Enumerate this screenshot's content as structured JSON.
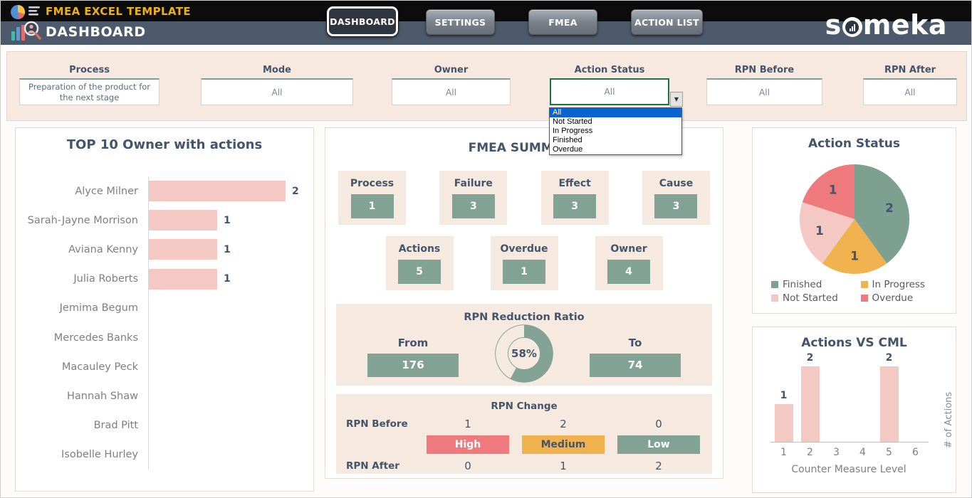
{
  "colors": {
    "sage": "#82a294",
    "beige": "#f6e9df",
    "pink_bar": "#f4c8c3",
    "dark": "#44546a",
    "gold": "#eeb20c",
    "dropdown_highlight": "#0a64cf",
    "select_green": "#1e7145"
  },
  "header": {
    "app_title": "FMEA EXCEL TEMPLATE",
    "page_title": "DASHBOARD",
    "brand_prefix": "s",
    "brand_suffix": "meka",
    "nav": [
      {
        "label": "DASHBOARD",
        "active": true
      },
      {
        "label": "SETTINGS",
        "active": false
      },
      {
        "label": "FMEA",
        "active": false
      },
      {
        "label": "ACTION LIST",
        "active": false
      }
    ]
  },
  "filters": [
    {
      "label": "Process",
      "value": "Preparation of the product for the next stage"
    },
    {
      "label": "Mode",
      "value": "All"
    },
    {
      "label": "Owner",
      "value": "All"
    },
    {
      "label": "Action Status",
      "value": "All",
      "options": [
        "All",
        "Not Started",
        "In Progress",
        "Finished",
        "Overdue"
      ],
      "highlighted_index": 0
    },
    {
      "label": "RPN Before",
      "value": "All"
    },
    {
      "label": "RPN After",
      "value": "All"
    }
  ],
  "top10": {
    "title": "TOP 10 Owner with actions",
    "chart_data": {
      "type": "bar",
      "orientation": "horizontal",
      "categories": [
        "Alyce Milner",
        "Sarah-Jayne Morrison",
        "Aviana Kenny",
        "Julia Roberts",
        "Jemima Begum",
        "Mercedes Banks",
        "Macauley Peck",
        "Hannah Shaw",
        "Brad Pitt",
        "Isobelle Hurley"
      ],
      "values": [
        2,
        1,
        1,
        1,
        0,
        0,
        0,
        0,
        0,
        0
      ],
      "bar_color": "#f4c8c3",
      "xlim": [
        0,
        2.4
      ]
    }
  },
  "summary": {
    "title": "FMEA SUMMARY",
    "cards_row1": [
      {
        "label": "Process",
        "value": "1"
      },
      {
        "label": "Failure",
        "value": "3"
      },
      {
        "label": "Effect",
        "value": "3"
      },
      {
        "label": "Cause",
        "value": "3"
      }
    ],
    "cards_row2": [
      {
        "label": "Actions",
        "value": "5"
      },
      {
        "label": "Overdue",
        "value": "1"
      },
      {
        "label": "Owner",
        "value": "4"
      }
    ],
    "rpn_ratio": {
      "title": "RPN Reduction Ratio",
      "from_label": "From",
      "from_value": "176",
      "percent": "58%",
      "percent_value": 58,
      "to_label": "To",
      "to_value": "74"
    },
    "rpn_change": {
      "title": "RPN Change",
      "before_label": "RPN Before",
      "after_label": "RPN After",
      "cols": [
        {
          "before": "1",
          "band": "High",
          "after": "0",
          "band_color": "#ee7a7d",
          "band_text": "#ffffff"
        },
        {
          "before": "2",
          "band": "Medium",
          "after": "1",
          "band_color": "#f0b24e",
          "band_text": "#44546a"
        },
        {
          "before": "0",
          "band": "Low",
          "after": "2",
          "band_color": "#82a294",
          "band_text": "#ffffff"
        }
      ]
    }
  },
  "action_status": {
    "title": "Action Status",
    "chart_data": {
      "type": "pie",
      "labels": [
        "Finished",
        "In Progress",
        "Not Started",
        "Overdue"
      ],
      "values": [
        2,
        1,
        1,
        1
      ],
      "colors": [
        "#7da091",
        "#f0b24e",
        "#f5c9c3",
        "#ee7a7d"
      ],
      "start_angle_deg": 0,
      "direction": "clockwise",
      "legend_position": "bottom"
    }
  },
  "actions_cml": {
    "title": "Actions VS CML",
    "chart_data": {
      "type": "bar",
      "categories": [
        "1",
        "2",
        "3",
        "4",
        "5",
        "6"
      ],
      "values": [
        1,
        2,
        0,
        0,
        2,
        0
      ],
      "xlabel": "Counter Measure Level",
      "ylabel": "# of Actions",
      "bar_color": "#f4c8c3",
      "ylim": [
        0,
        2
      ]
    }
  }
}
